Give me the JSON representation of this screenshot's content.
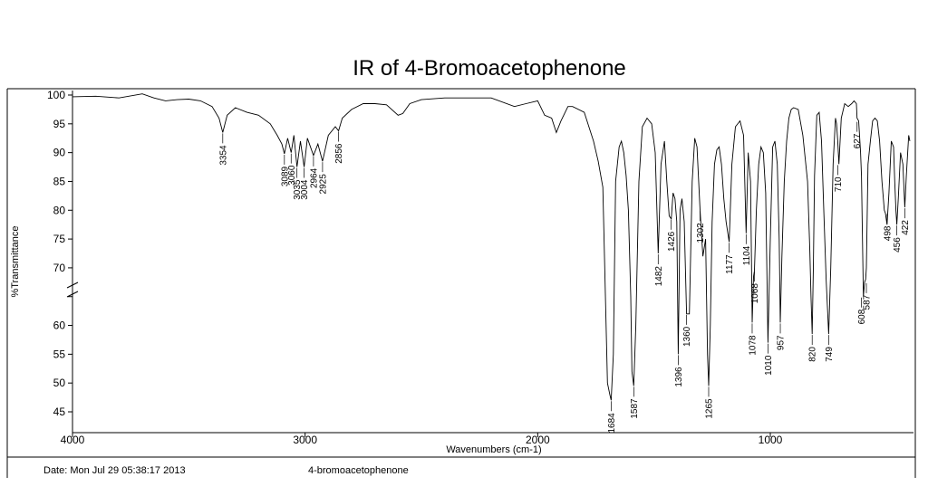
{
  "chart_data": {
    "type": "line",
    "title": "IR of 4-Bromoacetophenone",
    "xlabel": "Wavenumbers (cm-1)",
    "ylabel": "%Transmittance",
    "xlim": [
      4000,
      400
    ],
    "x_reversed": true,
    "ylim": [
      43,
      101
    ],
    "x_ticks": [
      4000,
      3000,
      2000,
      1000
    ],
    "y_ticks": [
      100,
      95,
      90,
      85,
      80,
      75,
      70,
      65,
      60,
      55,
      50,
      45
    ],
    "y_tick_labels": [
      "100",
      "95",
      "90",
      "85",
      "80",
      "75",
      "70",
      "",
      "60",
      "55",
      "50",
      "45"
    ],
    "grid": false,
    "series": [
      {
        "x": [
          4000,
          3900,
          3800,
          3700,
          3650,
          3600,
          3550,
          3500,
          3450,
          3400,
          3370,
          3354,
          3335,
          3300,
          3250,
          3200,
          3150,
          3120,
          3100,
          3089,
          3075,
          3060,
          3048,
          3035,
          3020,
          3004,
          2990,
          2964,
          2945,
          2925,
          2900,
          2870,
          2856,
          2840,
          2800,
          2750,
          2700,
          2650,
          2600,
          2580,
          2550,
          2500,
          2400,
          2300,
          2200,
          2100,
          2050,
          2000,
          1970,
          1940,
          1920,
          1900,
          1870,
          1850,
          1800,
          1760,
          1740,
          1720,
          1700,
          1690,
          1684,
          1675,
          1665,
          1650,
          1640,
          1630,
          1620,
          1610,
          1600,
          1595,
          1587,
          1578,
          1565,
          1550,
          1530,
          1510,
          1495,
          1482,
          1470,
          1455,
          1445,
          1435,
          1426,
          1418,
          1410,
          1402,
          1396,
          1388,
          1380,
          1370,
          1360,
          1348,
          1336,
          1325,
          1315,
          1302,
          1290,
          1278,
          1270,
          1265,
          1258,
          1250,
          1240,
          1230,
          1220,
          1210,
          1200,
          1190,
          1177,
          1165,
          1150,
          1130,
          1115,
          1104,
          1095,
          1085,
          1078,
          1072,
          1068,
          1060,
          1050,
          1040,
          1030,
          1020,
          1010,
          1000,
          990,
          980,
          970,
          962,
          957,
          950,
          940,
          930,
          920,
          910,
          900,
          880,
          860,
          840,
          830,
          825,
          820,
          815,
          810,
          800,
          790,
          780,
          770,
          760,
          749,
          740,
          730,
          720,
          715,
          710,
          705,
          695,
          680,
          665,
          650,
          640,
          630,
          627,
          620,
          612,
          608,
          600,
          595,
          590,
          587,
          580,
          570,
          560,
          550,
          540,
          530,
          520,
          510,
          505,
          498,
          490,
          480,
          470,
          465,
          460,
          456,
          450,
          440,
          430,
          422,
          415,
          405,
          400
        ],
        "y": [
          99.7,
          99.8,
          99.5,
          100.2,
          99.5,
          99.0,
          99.2,
          99.3,
          99.0,
          98.0,
          96.0,
          93.5,
          96.5,
          97.8,
          97.0,
          96.5,
          95.0,
          93.0,
          91.5,
          89.8,
          92.5,
          90.0,
          93.0,
          87.5,
          92.0,
          87.5,
          92.5,
          89.5,
          91.5,
          88.5,
          93.0,
          94.5,
          93.8,
          96.0,
          97.5,
          98.5,
          98.5,
          98.3,
          96.5,
          96.8,
          98.5,
          99.2,
          99.5,
          99.5,
          99.5,
          98.0,
          98.5,
          99.0,
          96.5,
          96.0,
          93.5,
          95.5,
          98.0,
          98.0,
          97.0,
          92.0,
          88.5,
          84.0,
          50.0,
          48.0,
          47.0,
          55.0,
          85.0,
          91.0,
          92.0,
          90.0,
          86.0,
          80.0,
          65.0,
          52.0,
          49.5,
          60.0,
          85.0,
          94.5,
          96.0,
          95.0,
          90.0,
          72.5,
          88.0,
          92.0,
          85.0,
          79.0,
          78.5,
          83.0,
          82.0,
          78.0,
          55.0,
          80.0,
          82.0,
          78.0,
          62.0,
          62.0,
          85.0,
          92.5,
          91.0,
          80.0,
          72.0,
          75.0,
          55.0,
          49.5,
          60.0,
          78.0,
          88.0,
          90.5,
          91.0,
          88.0,
          82.0,
          78.0,
          74.5,
          88.0,
          94.5,
          95.5,
          93.0,
          76.0,
          90.0,
          85.0,
          60.5,
          68.5,
          69.5,
          80.0,
          88.0,
          91.0,
          90.0,
          83.0,
          57.0,
          75.0,
          91.0,
          92.0,
          88.0,
          75.0,
          60.5,
          72.0,
          85.0,
          92.0,
          96.0,
          97.5,
          97.8,
          97.5,
          93.0,
          85.0,
          73.0,
          65.0,
          58.5,
          70.0,
          86.0,
          96.5,
          97.0,
          92.0,
          80.0,
          68.0,
          58.5,
          70.0,
          88.0,
          96.0,
          95.0,
          92.0,
          88.0,
          96.0,
          98.5,
          98.0,
          98.5,
          99.0,
          98.5,
          96.0,
          95.5,
          90.0,
          86.0,
          65.0,
          67.5,
          68.0,
          70.0,
          88.0,
          92.0,
          95.5,
          96.0,
          95.5,
          92.0,
          85.0,
          80.0,
          79.5,
          77.5,
          83.0,
          92.0,
          91.0,
          85.0,
          80.0,
          77.5,
          82.0,
          90.0,
          88.0,
          80.5,
          86.0,
          93.0,
          92.0
        ]
      }
    ],
    "peaks": [
      {
        "label": "3354",
        "x": 3354,
        "y": 93.5
      },
      {
        "label": "3089",
        "x": 3089,
        "y": 89.8
      },
      {
        "label": "3060",
        "x": 3060,
        "y": 90.0
      },
      {
        "label": "3035",
        "x": 3035,
        "y": 87.5
      },
      {
        "label": "3004",
        "x": 3004,
        "y": 87.5
      },
      {
        "label": "2964",
        "x": 2964,
        "y": 89.5
      },
      {
        "label": "2925",
        "x": 2925,
        "y": 88.5
      },
      {
        "label": "2856",
        "x": 2856,
        "y": 93.8
      },
      {
        "label": "1684",
        "x": 1684,
        "y": 47.0
      },
      {
        "label": "1587",
        "x": 1587,
        "y": 49.5
      },
      {
        "label": "1482",
        "x": 1482,
        "y": 72.5
      },
      {
        "label": "1426",
        "x": 1426,
        "y": 78.5
      },
      {
        "label": "1396",
        "x": 1396,
        "y": 55.0
      },
      {
        "label": "1360",
        "x": 1360,
        "y": 62.0
      },
      {
        "label": "1302",
        "x": 1302,
        "y": 80.0
      },
      {
        "label": "1265",
        "x": 1265,
        "y": 49.5
      },
      {
        "label": "1177",
        "x": 1177,
        "y": 74.5
      },
      {
        "label": "1104",
        "x": 1104,
        "y": 76.0
      },
      {
        "label": "1078",
        "x": 1078,
        "y": 60.5
      },
      {
        "label": "1068",
        "x": 1068,
        "y": 69.5
      },
      {
        "label": "1010",
        "x": 1010,
        "y": 57.0
      },
      {
        "label": "957",
        "x": 957,
        "y": 60.5
      },
      {
        "label": "820",
        "x": 820,
        "y": 58.5
      },
      {
        "label": "749",
        "x": 749,
        "y": 58.5
      },
      {
        "label": "710",
        "x": 710,
        "y": 88.0
      },
      {
        "label": "627",
        "x": 627,
        "y": 95.5
      },
      {
        "label": "608",
        "x": 608,
        "y": 65.0
      },
      {
        "label": "587",
        "x": 587,
        "y": 67.5
      },
      {
        "label": "498",
        "x": 498,
        "y": 79.5
      },
      {
        "label": "456",
        "x": 456,
        "y": 77.5
      },
      {
        "label": "422",
        "x": 422,
        "y": 80.5
      }
    ]
  },
  "footer": {
    "date": "Date: Mon Jul 29 05:38:17 2013",
    "sample": "4-bromoacetophenone"
  }
}
